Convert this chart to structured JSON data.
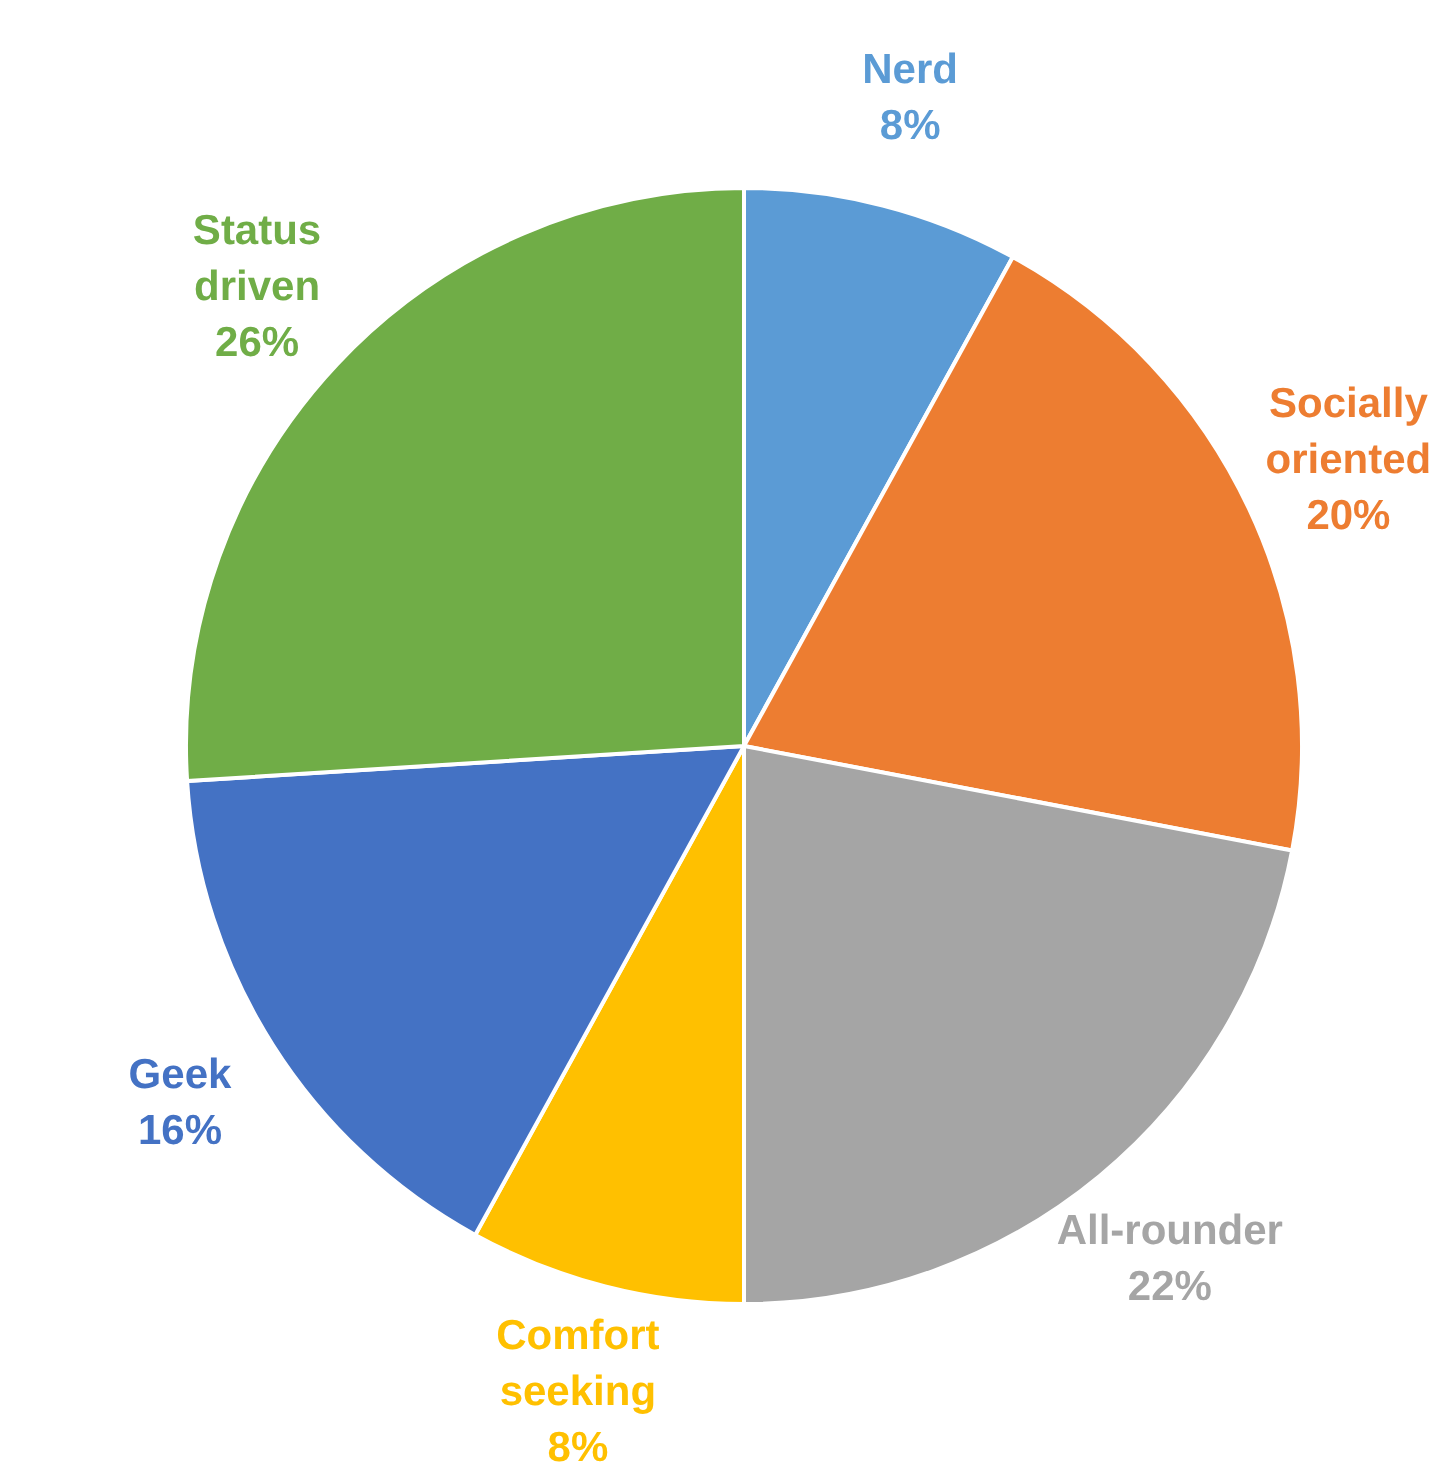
{
  "chart_data": {
    "type": "pie",
    "categories": [
      "Nerd",
      "Socially oriented",
      "All-rounder",
      "Comfort seeking",
      "Geek",
      "Status driven"
    ],
    "values": [
      8,
      20,
      22,
      8,
      16,
      26
    ],
    "colors": [
      "#5b9bd5",
      "#ed7d31",
      "#a5a5a5",
      "#ffc000",
      "#4472c4",
      "#70ad47"
    ],
    "value_labels": [
      "8%",
      "20%",
      "22%",
      "8%",
      "16%",
      "26%"
    ],
    "legend": false
  }
}
